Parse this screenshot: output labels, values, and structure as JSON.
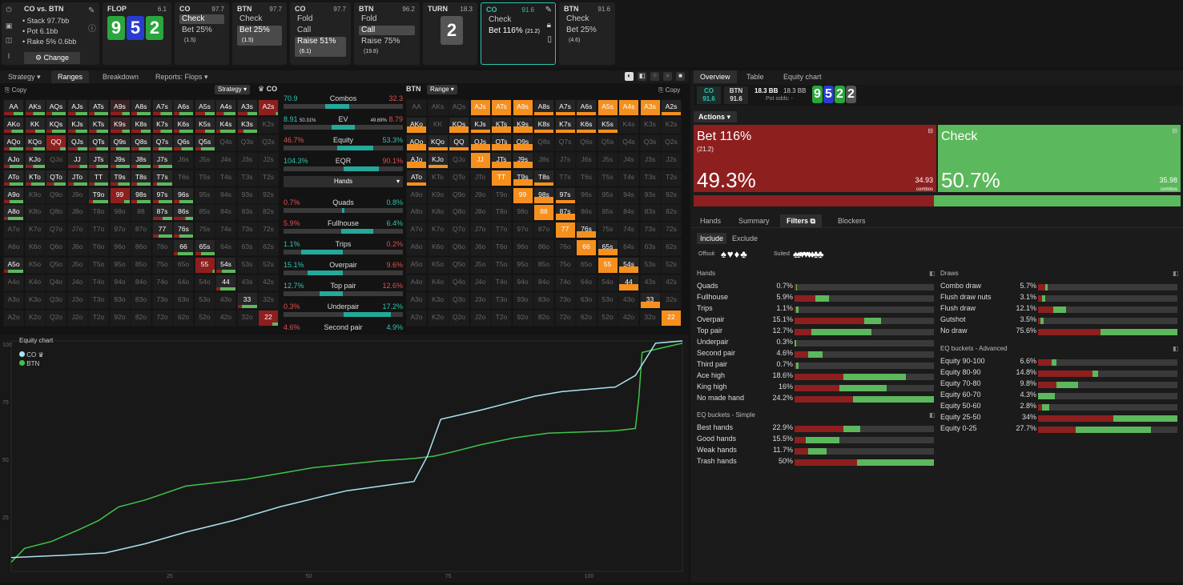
{
  "header": {
    "matchup": "CO vs. BTN",
    "stack_label": "Stack",
    "stack": "97.7bb",
    "pot_label": "Pot",
    "pot": "6.1bb",
    "rake_label": "Rake",
    "rake": "5% 0.6bb",
    "change": "Change",
    "nodes": [
      {
        "title": "FLOP",
        "stack": "6.1"
      },
      {
        "title": "CO",
        "stack": "97.7",
        "actions": [
          {
            "l": "Check",
            "sel": true
          },
          {
            "l": "Bet 25%",
            "sub": "(1.5)"
          }
        ]
      },
      {
        "title": "BTN",
        "stack": "97.7",
        "actions": [
          {
            "l": "Check"
          },
          {
            "l": "Bet 25%",
            "sub": "(1.5)",
            "sel": true
          }
        ]
      },
      {
        "title": "CO",
        "stack": "97.7",
        "actions": [
          {
            "l": "Fold"
          },
          {
            "l": "Call"
          },
          {
            "l": "Raise 51%",
            "sub": "(6.1)",
            "sel": true
          }
        ]
      },
      {
        "title": "BTN",
        "stack": "96.2",
        "actions": [
          {
            "l": "Fold"
          },
          {
            "l": "Call",
            "sel": true
          },
          {
            "l": "Raise 75%",
            "sub": "(19.8)"
          }
        ]
      },
      {
        "title": "TURN",
        "stack": "18.3"
      },
      {
        "title": "CO",
        "stack": "91.6",
        "actions": [
          {
            "l": "Check"
          },
          {
            "l": "Bet 116%",
            "sub": "(21.2)"
          }
        ]
      },
      {
        "title": "BTN",
        "stack": "91.6",
        "actions": [
          {
            "l": "Check"
          },
          {
            "l": "Bet 25%",
            "sub": "(4.6)"
          }
        ]
      }
    ],
    "flop": [
      "9",
      "5",
      "2"
    ],
    "turn": "2"
  },
  "left_tabs": [
    "Strategy",
    "Ranges",
    "Breakdown",
    "Reports: Flops"
  ],
  "left": {
    "copy": "Copy",
    "strategy": "Strategy",
    "player": "CO"
  },
  "right_grid": {
    "player": "BTN",
    "range": "Range",
    "copy": "Copy"
  },
  "middle": [
    {
      "l": "70.9",
      "lab": "Combos",
      "r": "32.3",
      "lc": "#2ec4b0",
      "rc": "#e05050",
      "fill": [
        0.35,
        0.55
      ]
    },
    {
      "l": "8.91",
      "lsub": "50.31%",
      "lab": "EV",
      "r": "8.79",
      "rsub": "49.69%",
      "lc": "#2ec4b0",
      "rc": "#e05050",
      "fill": [
        0.4,
        0.6
      ]
    },
    {
      "l": "46.7%",
      "lab": "Equity",
      "r": "53.3%",
      "lc": "#e05050",
      "rc": "#2ec4b0",
      "fill": [
        0.45,
        0.75
      ]
    },
    {
      "l": "104.3%",
      "lab": "EQR",
      "r": "90.1%",
      "lc": "#2ec4b0",
      "rc": "#e05050",
      "fill": [
        0.5,
        0.8
      ]
    },
    {
      "l": "",
      "lab": "Hands",
      "r": "",
      "fill": null
    },
    {
      "l": "0.7%",
      "lab": "Quads",
      "r": "0.8%",
      "lc": "#e05050",
      "rc": "#2ec4b0",
      "fill": [
        0.49,
        0.51
      ]
    },
    {
      "l": "5.9%",
      "lab": "Fullhouse",
      "r": "6.4%",
      "lc": "#e05050",
      "rc": "#2ec4b0",
      "fill": [
        0.48,
        0.75
      ]
    },
    {
      "l": "1.1%",
      "lab": "Trips",
      "r": "0.2%",
      "lc": "#2ec4b0",
      "rc": "#e05050",
      "fill": [
        0.15,
        0.5
      ]
    },
    {
      "l": "15.1%",
      "lab": "Overpair",
      "r": "9.6%",
      "lc": "#2ec4b0",
      "rc": "#e05050",
      "fill": [
        0.2,
        0.5
      ]
    },
    {
      "l": "12.7%",
      "lab": "Top pair",
      "r": "12.6%",
      "lc": "#2ec4b0",
      "rc": "#e05050",
      "fill": [
        0.3,
        0.5
      ]
    },
    {
      "l": "0.3%",
      "lab": "Underpair",
      "r": "17.2%",
      "lc": "#e05050",
      "rc": "#2ec4b0",
      "fill": [
        0.5,
        0.9
      ]
    },
    {
      "l": "4.6%",
      "lab": "Second pair",
      "r": "4.9%",
      "lc": "#e05050",
      "rc": "#2ec4b0",
      "fill": null
    }
  ],
  "chart_data": {
    "type": "line",
    "title": "Equity chart",
    "series": [
      {
        "name": "CO",
        "color": "#a8e4f0"
      },
      {
        "name": "BTN",
        "color": "#3fc44a"
      }
    ],
    "yticks": [
      "100",
      "75",
      "50",
      "25"
    ],
    "xticks": [
      "25",
      "50",
      "75",
      "100"
    ]
  },
  "right": {
    "tabs": [
      "Overview",
      "Table",
      "Equity chart"
    ],
    "co": "CO",
    "co_v": "91.6",
    "btn": "BTN",
    "btn_v": "91.6",
    "pot": "18.3 BB",
    "pot2": "18.3 BB",
    "pot_odds": "Pot odds: -",
    "board": [
      "9",
      "5",
      "2",
      "2"
    ],
    "actions_label": "Actions",
    "bet": {
      "l": "Bet 116%",
      "sub": "(21.2)",
      "pct": "49.3%",
      "combos": "34.93",
      "cl": "combos"
    },
    "check": {
      "l": "Check",
      "pct": "50.7%",
      "combos": "35.98",
      "cl": "combos"
    },
    "subtabs": [
      "Hands",
      "Summary",
      "Filters",
      "Blockers"
    ],
    "include": "Include",
    "exclude": "Exclude",
    "offsuit": "Offsuit",
    "suited": "Suited",
    "hands_title": "Hands",
    "hands": [
      [
        "Quads",
        "0.7%",
        0.01,
        0.02
      ],
      [
        "Fullhouse",
        "5.9%",
        0.15,
        0.25
      ],
      [
        "Trips",
        "1.1%",
        0.01,
        0.03
      ],
      [
        "Overpair",
        "15.1%",
        0.5,
        0.62
      ],
      [
        "Top pair",
        "12.7%",
        0.12,
        0.55
      ],
      [
        "Underpair",
        "0.3%",
        0.0,
        0.01
      ],
      [
        "Second pair",
        "4.6%",
        0.1,
        0.2
      ],
      [
        "Third pair",
        "0.7%",
        0.01,
        0.03
      ],
      [
        "Ace high",
        "18.6%",
        0.35,
        0.8
      ],
      [
        "King high",
        "16%",
        0.32,
        0.66
      ],
      [
        "No made hand",
        "24.2%",
        0.42,
        1.0
      ]
    ],
    "simple_title": "EQ buckets - Simple",
    "simple": [
      [
        "Best hands",
        "22.9%",
        0.35,
        0.47
      ],
      [
        "Good hands",
        "15.5%",
        0.08,
        0.32
      ],
      [
        "Weak hands",
        "11.7%",
        0.1,
        0.23
      ],
      [
        "Trash hands",
        "50%",
        0.45,
        1.0
      ]
    ],
    "draws_title": "Draws",
    "draws": [
      [
        "Combo draw",
        "5.7%",
        0.05,
        0.07
      ],
      [
        "Flush draw nuts",
        "3.1%",
        0.03,
        0.05
      ],
      [
        "Flush draw",
        "12.1%",
        0.11,
        0.2
      ],
      [
        "Gutshot",
        "3.5%",
        0.02,
        0.04
      ],
      [
        "No draw",
        "75.6%",
        0.45,
        1.0
      ]
    ],
    "adv_title": "EQ buckets - Advanced",
    "adv": [
      [
        "Equity 90-100",
        "6.6%",
        0.1,
        0.13
      ],
      [
        "Equity 80-90",
        "14.8%",
        0.39,
        0.43
      ],
      [
        "Equity 70-80",
        "9.8%",
        0.13,
        0.29
      ],
      [
        "Equity 60-70",
        "4.3%",
        0.0,
        0.12
      ],
      [
        "Equity 50-60",
        "2.8%",
        0.03,
        0.08
      ],
      [
        "Equity 25-50",
        "34%",
        0.54,
        1.0
      ],
      [
        "Equity 0-25",
        "27.7%",
        0.27,
        0.81
      ]
    ]
  }
}
